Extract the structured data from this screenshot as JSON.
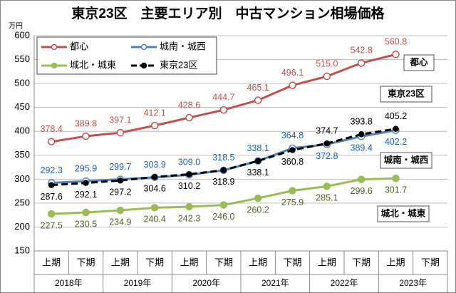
{
  "chart_data": {
    "type": "line",
    "title": "東京23区　主要エリア別　中古マンション相場価格",
    "y_unit": "万円",
    "categories": [
      "上期",
      "下期",
      "上期",
      "下期",
      "上期",
      "下期",
      "上期",
      "下期",
      "上期",
      "下期",
      "上期",
      "下期"
    ],
    "category_groups": [
      "2018年",
      "2019年",
      "2020年",
      "2021年",
      "2022年",
      "2023年"
    ],
    "ylim": [
      150,
      600
    ],
    "yticks": [
      150,
      200,
      250,
      300,
      350,
      400,
      450,
      500,
      550,
      600
    ],
    "grid": true,
    "legend": "top-left",
    "series": [
      {
        "name": "都心",
        "color": "#c0504d",
        "label_color": "#c0504d",
        "marker": "open",
        "dash": false,
        "values": [
          378.4,
          389.8,
          397.1,
          412.1,
          428.6,
          444.7,
          465.1,
          496.1,
          515.0,
          542.8,
          560.8,
          null
        ],
        "value_labels": [
          "378.4",
          "389.8",
          "397.1",
          "412.1",
          "428.6",
          "444.7",
          "465.1",
          "496.1",
          "515.0",
          "542.8",
          "560.8",
          null
        ]
      },
      {
        "name": "城南・城西",
        "color": "#4f81bd",
        "label_color": "#1f5fa8",
        "marker": "open",
        "dash": false,
        "values": [
          292.3,
          295.9,
          299.7,
          303.9,
          309.0,
          318.5,
          338.1,
          364.8,
          372.8,
          389.4,
          402.2,
          null
        ],
        "value_labels": [
          "292.3",
          "295.9",
          "299.7",
          "303.9",
          "309.0",
          "318.5",
          "338.1",
          "364.8",
          "372.8",
          "389.4",
          "402.2",
          null
        ]
      },
      {
        "name": "城北・城東",
        "color": "#9bbb59",
        "label_color": "#4f6228",
        "marker": "filled",
        "dash": false,
        "values": [
          227.5,
          230.5,
          234.9,
          240.4,
          242.3,
          246.0,
          260.2,
          275.9,
          285.1,
          299.6,
          301.7,
          null
        ],
        "value_labels": [
          "227.5",
          "230.5",
          "234.9",
          "240.4",
          "242.3",
          "246.0",
          "260.2",
          "275.9",
          "285.1",
          "299.6",
          "301.7",
          null
        ]
      },
      {
        "name": "東京23区",
        "color": "#000000",
        "label_color": "#000000",
        "marker": "filled",
        "dash": true,
        "values": [
          287.6,
          292.1,
          297.2,
          304.6,
          310.2,
          318.9,
          338.1,
          360.8,
          374.7,
          393.8,
          405.2,
          null
        ],
        "value_labels": [
          "287.6",
          "292.1",
          "297.2",
          "304.6",
          "310.2",
          "318.9",
          "338.1",
          "360.8",
          "374.7",
          "393.8",
          "405.2",
          null
        ]
      }
    ],
    "annotations": [
      "都心",
      "東京23区",
      "城南・城西",
      "城北・城東"
    ]
  }
}
